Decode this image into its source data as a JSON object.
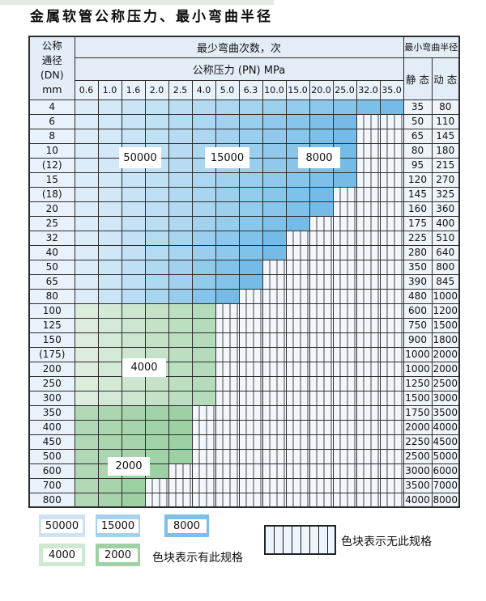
{
  "title": "金属软管公称压力、最小弯曲半径",
  "table": {
    "header": {
      "dn_label_lines": [
        "公称",
        "通径",
        "(DN)",
        "mm"
      ],
      "cycles_label": "最少弯曲次数，次",
      "pressure_label": "公称压力 (PN) MPa",
      "radius_label": "最小弯曲半径",
      "static_label": "静 态",
      "dynamic_label": "动 态",
      "pressure_columns": [
        "0.6",
        "1.0",
        "1.6",
        "2.0",
        "2.5",
        "4.0",
        "5.0",
        "6.3",
        "10.0",
        "15.0",
        "20.0",
        "25.0",
        "32.0",
        "35.0"
      ]
    },
    "rows": [
      {
        "dn": "4",
        "colored": 14,
        "zone": "blue",
        "static": "35",
        "dynamic": "80"
      },
      {
        "dn": "6",
        "colored": 12,
        "zone": "blue",
        "static": "50",
        "dynamic": "110"
      },
      {
        "dn": "8",
        "colored": 12,
        "zone": "blue",
        "static": "65",
        "dynamic": "145"
      },
      {
        "dn": "10",
        "colored": 12,
        "zone": "blue",
        "static": "80",
        "dynamic": "180"
      },
      {
        "dn": "(12)",
        "colored": 12,
        "zone": "blue",
        "static": "95",
        "dynamic": "215"
      },
      {
        "dn": "15",
        "colored": 12,
        "zone": "blue",
        "static": "120",
        "dynamic": "270"
      },
      {
        "dn": "(18)",
        "colored": 11,
        "zone": "blue",
        "static": "145",
        "dynamic": "325"
      },
      {
        "dn": "20",
        "colored": 11,
        "zone": "blue",
        "static": "160",
        "dynamic": "360"
      },
      {
        "dn": "25",
        "colored": 10,
        "zone": "blue",
        "static": "175",
        "dynamic": "400"
      },
      {
        "dn": "32",
        "colored": 9,
        "zone": "blue",
        "static": "225",
        "dynamic": "510"
      },
      {
        "dn": "40",
        "colored": 9,
        "zone": "blue",
        "static": "280",
        "dynamic": "640"
      },
      {
        "dn": "50",
        "colored": 8,
        "zone": "blue",
        "static": "350",
        "dynamic": "800"
      },
      {
        "dn": "65",
        "colored": 8,
        "zone": "blue",
        "static": "390",
        "dynamic": "845"
      },
      {
        "dn": "80",
        "colored": 7,
        "zone": "blue",
        "static": "480",
        "dynamic": "1000"
      },
      {
        "dn": "100",
        "colored": 6,
        "zone": "green_light",
        "static": "600",
        "dynamic": "1200"
      },
      {
        "dn": "125",
        "colored": 6,
        "zone": "green_light",
        "static": "750",
        "dynamic": "1500"
      },
      {
        "dn": "150",
        "colored": 6,
        "zone": "green_light",
        "static": "900",
        "dynamic": "1800"
      },
      {
        "dn": "(175)",
        "colored": 6,
        "zone": "green_light",
        "static": "1000",
        "dynamic": "2000"
      },
      {
        "dn": "200",
        "colored": 6,
        "zone": "green_light",
        "static": "1000",
        "dynamic": "2000"
      },
      {
        "dn": "250",
        "colored": 6,
        "zone": "green_light",
        "static": "1250",
        "dynamic": "2500"
      },
      {
        "dn": "300",
        "colored": 6,
        "zone": "green_light",
        "static": "1500",
        "dynamic": "3000"
      },
      {
        "dn": "350",
        "colored": 5,
        "zone": "green_deep",
        "static": "1750",
        "dynamic": "3500"
      },
      {
        "dn": "400",
        "colored": 5,
        "zone": "green_deep",
        "static": "2000",
        "dynamic": "4000"
      },
      {
        "dn": "450",
        "colored": 5,
        "zone": "green_deep",
        "static": "2250",
        "dynamic": "4500"
      },
      {
        "dn": "500",
        "colored": 5,
        "zone": "green_deep",
        "static": "2500",
        "dynamic": "5000"
      },
      {
        "dn": "600",
        "colored": 4,
        "zone": "green_deep",
        "static": "3000",
        "dynamic": "6000"
      },
      {
        "dn": "700",
        "colored": 3,
        "zone": "green_deep",
        "static": "3500",
        "dynamic": "7000"
      },
      {
        "dn": "800",
        "colored": 3,
        "zone": "green_deep",
        "static": "4000",
        "dynamic": "8000"
      }
    ],
    "zone_labels": [
      {
        "text": "50000"
      },
      {
        "text": "15000"
      },
      {
        "text": "8000"
      },
      {
        "text": "4000"
      },
      {
        "text": "2000"
      }
    ]
  },
  "colors": {
    "grid_line": "#2d2d2d",
    "header_bg": "#e3edf7",
    "cell_bg": "#e9f1fa",
    "zones": {
      "blue": [
        "#dcedf9",
        "#74bce7"
      ],
      "green_light": [
        "#dcecdd",
        "#b5dcba"
      ],
      "green_deep": [
        "#b0d8b4",
        "#9dd0a3"
      ]
    },
    "legend_swatches": {
      "50000": "#cde3f4",
      "15000": "#a6d0ee",
      "8000": "#7cc0e8",
      "4000": "#cfe8d2",
      "2000": "#9fd1a5"
    }
  },
  "legend": {
    "items": [
      {
        "text": "50000"
      },
      {
        "text": "15000"
      },
      {
        "text": "8000"
      },
      {
        "text": "4000"
      },
      {
        "text": "2000"
      }
    ],
    "has_spec_text": "色块表示有此规格",
    "no_spec_text": "色块表示无此规格"
  }
}
